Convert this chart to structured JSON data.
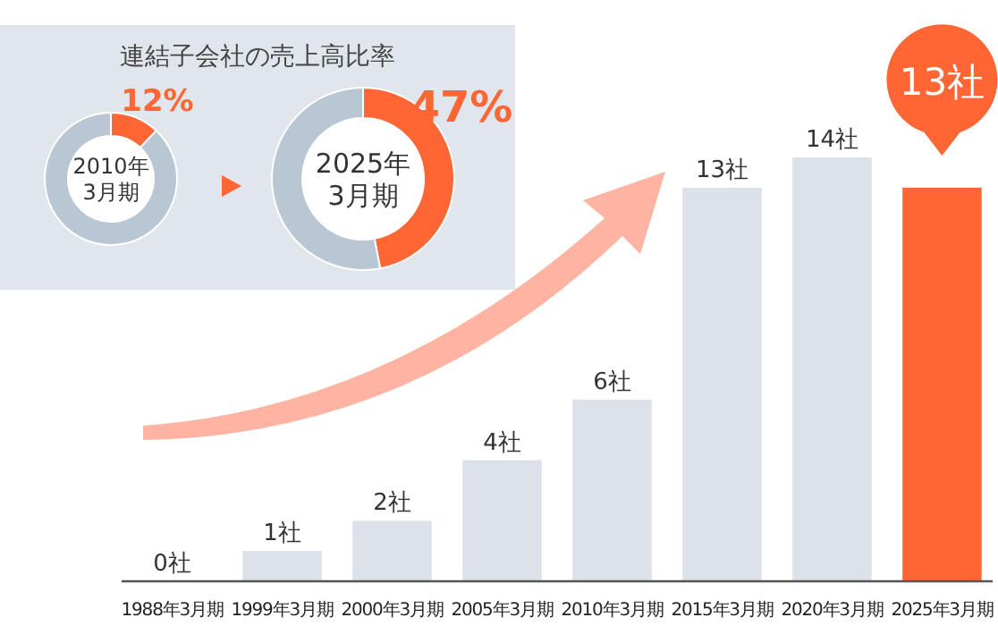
{
  "chart_data": [
    {
      "type": "other",
      "title": "連結子会社の売上高比率"
    },
    {
      "type": "donut",
      "title": "2010年\n3月期",
      "categories": [
        null,
        null
      ],
      "values": [
        12,
        88
      ],
      "colors": [
        "#ff6633",
        "#b9c6d3"
      ],
      "value_labels": [
        "12%",
        null
      ]
    },
    {
      "type": "donut",
      "title": "2025年\n3月期",
      "categories": [
        null,
        null
      ],
      "values": [
        47,
        53
      ],
      "colors": [
        "#ff6633",
        "#b9c6d3"
      ],
      "value_labels": [
        "47%",
        null
      ]
    },
    {
      "type": "bar",
      "categories": [
        "1988年3月期",
        "1999年3月期",
        "2000年3月期",
        "2005年3月期",
        "2010年3月期",
        "2015年3月期",
        "2020年3月期",
        "2025年3月期"
      ],
      "values": [
        0,
        1,
        2,
        4,
        6,
        13,
        14,
        13
      ],
      "colors": [
        "#dde2ea",
        "#dde2ea",
        "#dde2ea",
        "#dde2ea",
        "#dde2ea",
        "#dde2ea",
        "#dde2ea",
        "#ff6633"
      ],
      "value_labels": [
        "0社",
        "1社",
        "2社",
        "4社",
        "6社",
        "13社",
        "14社",
        "13社"
      ],
      "ylim": [
        0,
        14
      ]
    }
  ]
}
